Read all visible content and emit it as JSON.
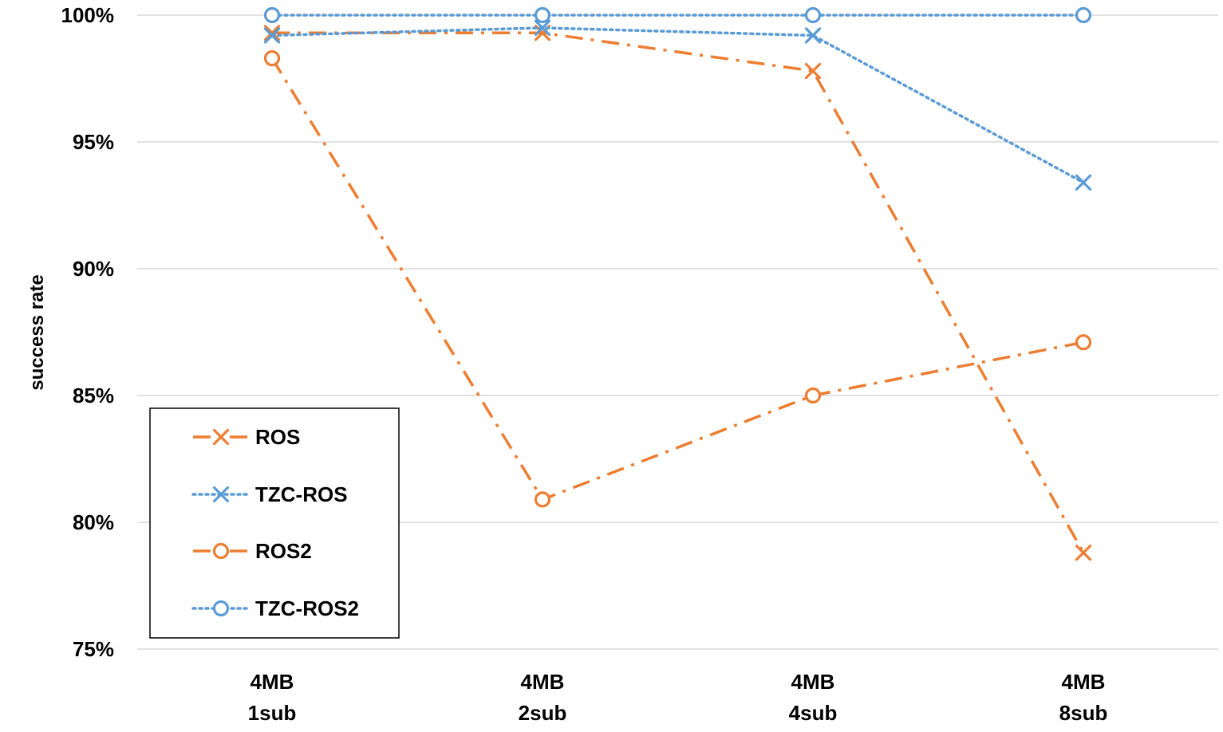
{
  "chart_data": {
    "type": "line",
    "categories": [
      [
        "4MB",
        "1sub"
      ],
      [
        "4MB",
        "2sub"
      ],
      [
        "4MB",
        "4sub"
      ],
      [
        "4MB",
        "8sub"
      ]
    ],
    "ylabel": "success rate",
    "ylim": [
      75,
      100
    ],
    "yticks": [
      75,
      80,
      85,
      90,
      95,
      100
    ],
    "ytick_labels": [
      "75%",
      "80%",
      "85%",
      "90%",
      "95%",
      "100%"
    ],
    "grid": "horizontal",
    "legend_placement": "bottom-left",
    "series": [
      {
        "name": "ROS",
        "values": [
          99.3,
          99.3,
          97.8,
          78.8
        ],
        "color": "#ED7D31",
        "dash": "dash-dot",
        "marker": "x"
      },
      {
        "name": "TZC-ROS",
        "values": [
          99.2,
          99.5,
          99.2,
          93.4
        ],
        "color": "#5B9BD5",
        "dash": "dotted",
        "marker": "x"
      },
      {
        "name": "ROS2",
        "values": [
          98.3,
          80.9,
          85.0,
          87.1
        ],
        "color": "#ED7D31",
        "dash": "dash-dot",
        "marker": "circle"
      },
      {
        "name": "TZC-ROS2",
        "values": [
          100,
          100,
          100,
          100
        ],
        "color": "#5B9BD5",
        "dash": "dotted",
        "marker": "circle"
      }
    ]
  }
}
